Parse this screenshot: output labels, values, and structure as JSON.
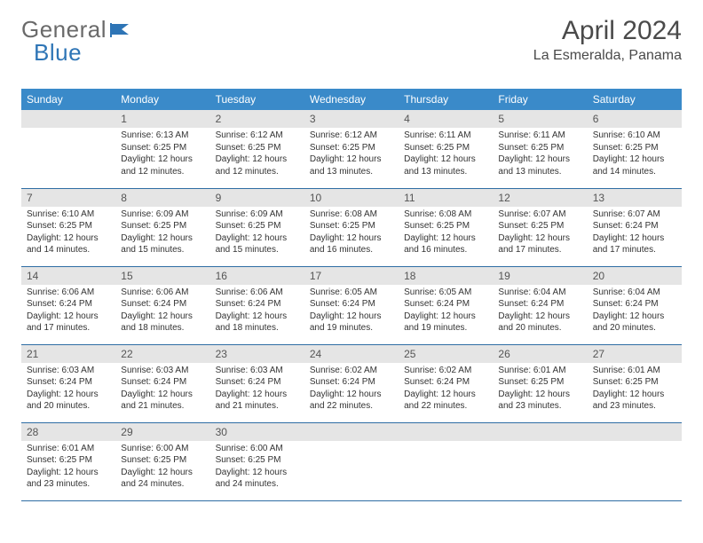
{
  "brand": {
    "part1": "General",
    "part2": "Blue"
  },
  "title": "April 2024",
  "location": "La Esmeralda, Panama",
  "colors": {
    "header_bg": "#3a8ac9",
    "header_text": "#ffffff",
    "daynum_bg": "#e5e5e5",
    "row_divider": "#2e6da4",
    "body_text": "#333333",
    "brand_gray": "#6a6a6a",
    "brand_blue": "#2e75b6"
  },
  "weekdays": [
    "Sunday",
    "Monday",
    "Tuesday",
    "Wednesday",
    "Thursday",
    "Friday",
    "Saturday"
  ],
  "weeks": [
    [
      null,
      {
        "n": "1",
        "sr": "Sunrise: 6:13 AM",
        "ss": "Sunset: 6:25 PM",
        "dl": "Daylight: 12 hours and 12 minutes."
      },
      {
        "n": "2",
        "sr": "Sunrise: 6:12 AM",
        "ss": "Sunset: 6:25 PM",
        "dl": "Daylight: 12 hours and 12 minutes."
      },
      {
        "n": "3",
        "sr": "Sunrise: 6:12 AM",
        "ss": "Sunset: 6:25 PM",
        "dl": "Daylight: 12 hours and 13 minutes."
      },
      {
        "n": "4",
        "sr": "Sunrise: 6:11 AM",
        "ss": "Sunset: 6:25 PM",
        "dl": "Daylight: 12 hours and 13 minutes."
      },
      {
        "n": "5",
        "sr": "Sunrise: 6:11 AM",
        "ss": "Sunset: 6:25 PM",
        "dl": "Daylight: 12 hours and 13 minutes."
      },
      {
        "n": "6",
        "sr": "Sunrise: 6:10 AM",
        "ss": "Sunset: 6:25 PM",
        "dl": "Daylight: 12 hours and 14 minutes."
      }
    ],
    [
      {
        "n": "7",
        "sr": "Sunrise: 6:10 AM",
        "ss": "Sunset: 6:25 PM",
        "dl": "Daylight: 12 hours and 14 minutes."
      },
      {
        "n": "8",
        "sr": "Sunrise: 6:09 AM",
        "ss": "Sunset: 6:25 PM",
        "dl": "Daylight: 12 hours and 15 minutes."
      },
      {
        "n": "9",
        "sr": "Sunrise: 6:09 AM",
        "ss": "Sunset: 6:25 PM",
        "dl": "Daylight: 12 hours and 15 minutes."
      },
      {
        "n": "10",
        "sr": "Sunrise: 6:08 AM",
        "ss": "Sunset: 6:25 PM",
        "dl": "Daylight: 12 hours and 16 minutes."
      },
      {
        "n": "11",
        "sr": "Sunrise: 6:08 AM",
        "ss": "Sunset: 6:25 PM",
        "dl": "Daylight: 12 hours and 16 minutes."
      },
      {
        "n": "12",
        "sr": "Sunrise: 6:07 AM",
        "ss": "Sunset: 6:25 PM",
        "dl": "Daylight: 12 hours and 17 minutes."
      },
      {
        "n": "13",
        "sr": "Sunrise: 6:07 AM",
        "ss": "Sunset: 6:24 PM",
        "dl": "Daylight: 12 hours and 17 minutes."
      }
    ],
    [
      {
        "n": "14",
        "sr": "Sunrise: 6:06 AM",
        "ss": "Sunset: 6:24 PM",
        "dl": "Daylight: 12 hours and 17 minutes."
      },
      {
        "n": "15",
        "sr": "Sunrise: 6:06 AM",
        "ss": "Sunset: 6:24 PM",
        "dl": "Daylight: 12 hours and 18 minutes."
      },
      {
        "n": "16",
        "sr": "Sunrise: 6:06 AM",
        "ss": "Sunset: 6:24 PM",
        "dl": "Daylight: 12 hours and 18 minutes."
      },
      {
        "n": "17",
        "sr": "Sunrise: 6:05 AM",
        "ss": "Sunset: 6:24 PM",
        "dl": "Daylight: 12 hours and 19 minutes."
      },
      {
        "n": "18",
        "sr": "Sunrise: 6:05 AM",
        "ss": "Sunset: 6:24 PM",
        "dl": "Daylight: 12 hours and 19 minutes."
      },
      {
        "n": "19",
        "sr": "Sunrise: 6:04 AM",
        "ss": "Sunset: 6:24 PM",
        "dl": "Daylight: 12 hours and 20 minutes."
      },
      {
        "n": "20",
        "sr": "Sunrise: 6:04 AM",
        "ss": "Sunset: 6:24 PM",
        "dl": "Daylight: 12 hours and 20 minutes."
      }
    ],
    [
      {
        "n": "21",
        "sr": "Sunrise: 6:03 AM",
        "ss": "Sunset: 6:24 PM",
        "dl": "Daylight: 12 hours and 20 minutes."
      },
      {
        "n": "22",
        "sr": "Sunrise: 6:03 AM",
        "ss": "Sunset: 6:24 PM",
        "dl": "Daylight: 12 hours and 21 minutes."
      },
      {
        "n": "23",
        "sr": "Sunrise: 6:03 AM",
        "ss": "Sunset: 6:24 PM",
        "dl": "Daylight: 12 hours and 21 minutes."
      },
      {
        "n": "24",
        "sr": "Sunrise: 6:02 AM",
        "ss": "Sunset: 6:24 PM",
        "dl": "Daylight: 12 hours and 22 minutes."
      },
      {
        "n": "25",
        "sr": "Sunrise: 6:02 AM",
        "ss": "Sunset: 6:24 PM",
        "dl": "Daylight: 12 hours and 22 minutes."
      },
      {
        "n": "26",
        "sr": "Sunrise: 6:01 AM",
        "ss": "Sunset: 6:25 PM",
        "dl": "Daylight: 12 hours and 23 minutes."
      },
      {
        "n": "27",
        "sr": "Sunrise: 6:01 AM",
        "ss": "Sunset: 6:25 PM",
        "dl": "Daylight: 12 hours and 23 minutes."
      }
    ],
    [
      {
        "n": "28",
        "sr": "Sunrise: 6:01 AM",
        "ss": "Sunset: 6:25 PM",
        "dl": "Daylight: 12 hours and 23 minutes."
      },
      {
        "n": "29",
        "sr": "Sunrise: 6:00 AM",
        "ss": "Sunset: 6:25 PM",
        "dl": "Daylight: 12 hours and 24 minutes."
      },
      {
        "n": "30",
        "sr": "Sunrise: 6:00 AM",
        "ss": "Sunset: 6:25 PM",
        "dl": "Daylight: 12 hours and 24 minutes."
      },
      null,
      null,
      null,
      null
    ]
  ]
}
